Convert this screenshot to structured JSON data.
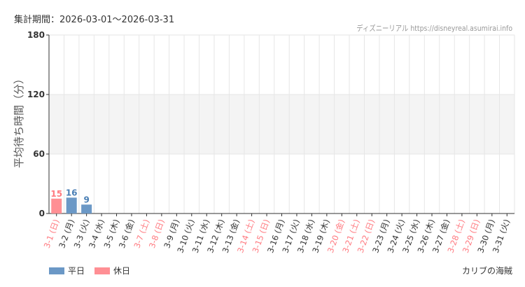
{
  "header": {
    "period": "集計期間：2026-03-01〜2026-03-31",
    "credit": "ディズニーリアル https://disneyreal.asumirai.info"
  },
  "legend": {
    "weekday": "平日",
    "holiday": "休日"
  },
  "park": "カリブの海賊",
  "colors": {
    "weekday": "#6b98c6",
    "holiday": "#ff8f94",
    "weekday_text": "#4a7fb5",
    "holiday_text": "#ff7a80",
    "band": "#f4f4f4"
  },
  "chart_data": {
    "type": "bar",
    "ylabel": "平均待ち時間（分）",
    "ylim": [
      0,
      180
    ],
    "yticks": [
      0,
      60,
      120,
      180
    ],
    "grid": true,
    "legend_position": "bottom-left",
    "categories": [
      "3-1 (日)",
      "3-2 (月)",
      "3-3 (火)",
      "3-4 (水)",
      "3-5 (木)",
      "3-6 (金)",
      "3-7 (土)",
      "3-8 (日)",
      "3-9 (月)",
      "3-10 (火)",
      "3-11 (水)",
      "3-12 (木)",
      "3-13 (金)",
      "3-14 (土)",
      "3-15 (日)",
      "3-16 (月)",
      "3-17 (火)",
      "3-18 (水)",
      "3-19 (木)",
      "3-20 (金)",
      "3-21 (土)",
      "3-22 (日)",
      "3-23 (月)",
      "3-24 (火)",
      "3-25 (水)",
      "3-26 (木)",
      "3-27 (金)",
      "3-28 (土)",
      "3-29 (日)",
      "3-30 (月)",
      "3-31 (火)"
    ],
    "holiday": [
      true,
      false,
      false,
      false,
      false,
      false,
      true,
      true,
      false,
      false,
      false,
      false,
      false,
      true,
      true,
      false,
      false,
      false,
      false,
      true,
      true,
      true,
      false,
      false,
      false,
      false,
      false,
      true,
      true,
      false,
      false
    ],
    "values": [
      15,
      16,
      9,
      null,
      null,
      null,
      null,
      null,
      null,
      null,
      null,
      null,
      null,
      null,
      null,
      null,
      null,
      null,
      null,
      null,
      null,
      null,
      null,
      null,
      null,
      null,
      null,
      null,
      null,
      null,
      null
    ]
  }
}
